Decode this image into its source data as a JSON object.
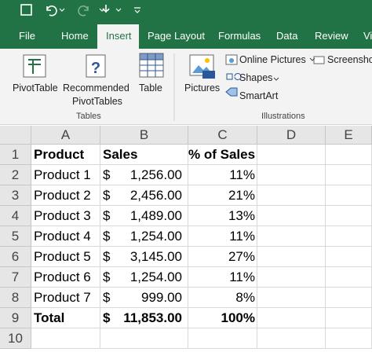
{
  "ribbon": {
    "tabs": [
      "File",
      "Home",
      "Insert",
      "Page Layout",
      "Formulas",
      "Data",
      "Review",
      "Vi"
    ],
    "groups": [
      {
        "label": "Tables",
        "buttons": [
          "PivotTable",
          "Recommended",
          "PivotTables",
          "Table"
        ]
      },
      {
        "label": "Illustrations",
        "buttons": [
          "Pictures",
          "Online Pictures",
          "Shapes",
          "SmartArt",
          "Screenshot"
        ]
      }
    ]
  },
  "sheet": {
    "columns": [
      "A",
      "B",
      "C",
      "D",
      "E"
    ],
    "row_numbers": [
      1,
      2,
      3,
      4,
      5,
      6,
      7,
      8,
      9,
      10
    ],
    "header": [
      "Product",
      "Sales",
      "% of Sales"
    ],
    "rows": [
      {
        "product": "Product 1",
        "symbol": "$",
        "amount": "1,256.00",
        "share": "11%"
      },
      {
        "product": "Product 2",
        "symbol": "$",
        "amount": "2,456.00",
        "share": "21%"
      },
      {
        "product": "Product 3",
        "symbol": "$",
        "amount": "1,489.00",
        "share": "13%"
      },
      {
        "product": "Product 4",
        "symbol": "$",
        "amount": "1,254.00",
        "share": "11%"
      },
      {
        "product": "Product 5",
        "symbol": "$",
        "amount": "3,145.00",
        "share": "27%"
      },
      {
        "product": "Product 6",
        "symbol": "$",
        "amount": "1,254.00",
        "share": "11%"
      },
      {
        "product": "Product 7",
        "symbol": "$",
        "amount": "999.00",
        "share": "8%"
      }
    ],
    "total": {
      "product": "Total",
      "symbol": "$",
      "amount": "11,853.00",
      "share": "100%"
    }
  }
}
